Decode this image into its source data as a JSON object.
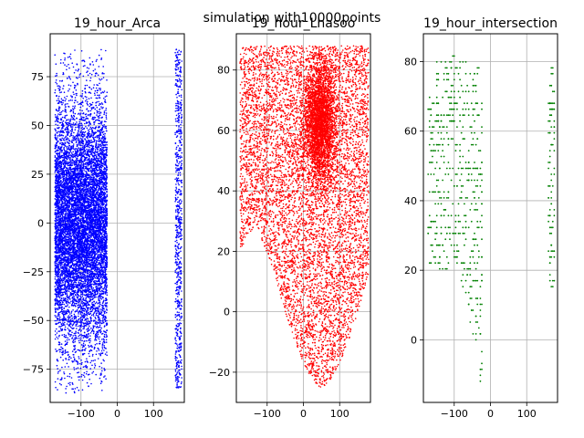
{
  "suptitle": "simulation with10000points",
  "chart_data": [
    {
      "type": "scatter",
      "title": "19_hour_Arca",
      "color": "#0000ff",
      "grid": true,
      "xlim": [
        -185,
        185
      ],
      "ylim": [
        -92,
        97
      ],
      "xticks": [
        -100,
        0,
        100
      ],
      "yticks": [
        -75,
        -50,
        -25,
        0,
        25,
        50,
        75
      ],
      "xtick_labels": [
        "−100",
        "0",
        "100"
      ],
      "ytick_labels": [
        "−75",
        "−50",
        "−25",
        "0",
        "25",
        "50",
        "75"
      ],
      "n_points": 10000,
      "clusters": [
        {
          "x_range": [
            -172,
            -28
          ],
          "y_range": [
            -88,
            89
          ],
          "share": 0.93
        },
        {
          "x_range": [
            160,
            178
          ],
          "y_range": [
            -85,
            89
          ],
          "share": 0.07
        }
      ]
    },
    {
      "type": "scatter",
      "title": "19_hour_Lhasoo",
      "color": "#ff0000",
      "grid": true,
      "xlim": [
        -185,
        185
      ],
      "ylim": [
        -30,
        92
      ],
      "xticks": [
        -100,
        0,
        100
      ],
      "yticks": [
        -20,
        0,
        20,
        40,
        60,
        80
      ],
      "xtick_labels": [
        "−100",
        "0",
        "100"
      ],
      "ytick_labels": [
        "−20",
        "0",
        "20",
        "40",
        "60",
        "80"
      ],
      "n_points": 10000
    },
    {
      "type": "scatter",
      "title": "19_hour_intersection",
      "color": "#008000",
      "grid": true,
      "xlim": [
        -185,
        185
      ],
      "ylim": [
        -18,
        88
      ],
      "xticks": [
        -100,
        0,
        100
      ],
      "yticks": [
        0,
        20,
        40,
        60,
        80
      ],
      "xtick_labels": [
        "−100",
        "0",
        "100"
      ],
      "ytick_labels": [
        "0",
        "20",
        "40",
        "60",
        "80"
      ],
      "n_points": 600
    }
  ]
}
